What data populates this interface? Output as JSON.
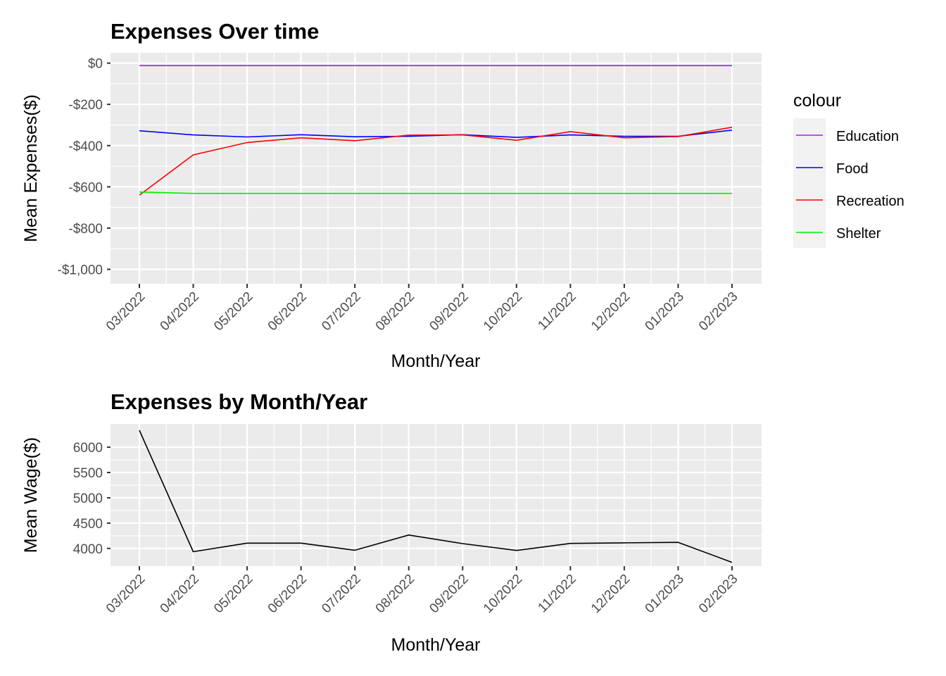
{
  "chart_data": [
    {
      "type": "line",
      "title": "Expenses Over time",
      "xlabel": "Month/Year",
      "ylabel": "Mean Expenses($)",
      "categories": [
        "03/2022",
        "04/2022",
        "05/2022",
        "06/2022",
        "07/2022",
        "08/2022",
        "09/2022",
        "10/2022",
        "11/2022",
        "12/2022",
        "01/2023",
        "02/2023"
      ],
      "y_ticks": [
        {
          "value": 0,
          "label": "$0"
        },
        {
          "value": -200,
          "label": "-$200"
        },
        {
          "value": -400,
          "label": "-$400"
        },
        {
          "value": -600,
          "label": "-$600"
        },
        {
          "value": -800,
          "label": "-$800"
        },
        {
          "value": -1000,
          "label": "-$1,000"
        }
      ],
      "ylim": [
        -1070,
        50
      ],
      "grid": true,
      "legend": {
        "title": "colour",
        "placement": "right"
      },
      "series": [
        {
          "name": "Education",
          "color": "#a020f0",
          "values": [
            -12,
            -12,
            -12,
            -12,
            -12,
            -12,
            -12,
            -12,
            -12,
            -12,
            -12,
            -12
          ]
        },
        {
          "name": "Food",
          "color": "#0000ff",
          "values": [
            -328,
            -348,
            -358,
            -347,
            -357,
            -355,
            -347,
            -360,
            -348,
            -355,
            -355,
            -325
          ]
        },
        {
          "name": "Recreation",
          "color": "#ff0000",
          "values": [
            -640,
            -445,
            -385,
            -362,
            -376,
            -349,
            -348,
            -374,
            -332,
            -362,
            -356,
            -311
          ]
        },
        {
          "name": "Shelter",
          "color": "#00ee00",
          "values": [
            -625,
            -632,
            -632,
            -632,
            -632,
            -632,
            -632,
            -632,
            -632,
            -632,
            -632,
            -632
          ]
        }
      ]
    },
    {
      "type": "line",
      "title": "Expenses by Month/Year",
      "xlabel": "Month/Year",
      "ylabel": "Mean Wage($)",
      "categories": [
        "03/2022",
        "04/2022",
        "05/2022",
        "06/2022",
        "07/2022",
        "08/2022",
        "09/2022",
        "10/2022",
        "11/2022",
        "12/2022",
        "01/2023",
        "02/2023"
      ],
      "y_ticks": [
        {
          "value": 4000,
          "label": "4000"
        },
        {
          "value": 4500,
          "label": "4500"
        },
        {
          "value": 5000,
          "label": "5000"
        },
        {
          "value": 5500,
          "label": "5500"
        },
        {
          "value": 6000,
          "label": "6000"
        }
      ],
      "ylim": [
        3650,
        6460
      ],
      "grid": true,
      "series": [
        {
          "color": "#000000",
          "values": [
            6335,
            3935,
            4105,
            4105,
            3965,
            4265,
            4095,
            3960,
            4100,
            4110,
            4120,
            3725
          ]
        }
      ]
    }
  ]
}
